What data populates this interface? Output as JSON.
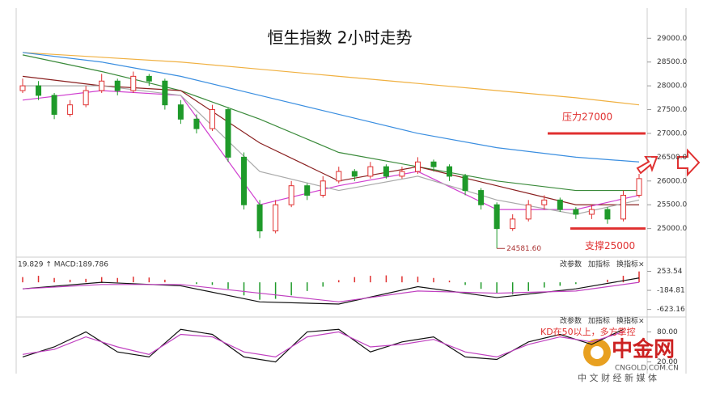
{
  "chart_data": [
    {
      "type": "candlestick",
      "title": "恒生指数 2小时走势",
      "open": [
        27900,
        28000,
        27800,
        27400,
        27600,
        27900,
        28100,
        27900,
        28200,
        28100,
        27600,
        27300,
        27100,
        27500,
        26500,
        25500,
        24950,
        25500,
        25900,
        25700,
        26000,
        26200,
        26100,
        26300,
        26100,
        26200,
        26400,
        26300,
        26100,
        25800,
        25500,
        25000,
        25200,
        25500,
        25600,
        25400,
        25300,
        25400,
        25200,
        25700
      ],
      "close": [
        28000,
        27800,
        27400,
        27600,
        27900,
        28100,
        27900,
        28200,
        28100,
        27600,
        27300,
        27100,
        27500,
        26500,
        25500,
        24950,
        25500,
        25900,
        25700,
        26000,
        26200,
        26100,
        26300,
        26100,
        26200,
        26400,
        26300,
        26100,
        25800,
        25500,
        25000,
        25200,
        25500,
        25600,
        25400,
        25300,
        25400,
        25200,
        25700,
        26050
      ],
      "high": [
        28150,
        28100,
        27850,
        27700,
        28000,
        28250,
        28150,
        28300,
        28250,
        28150,
        27700,
        27400,
        27600,
        27550,
        26600,
        25600,
        25600,
        26000,
        25950,
        26100,
        26300,
        26250,
        26400,
        26350,
        26300,
        26500,
        26450,
        26350,
        26150,
        25850,
        25550,
        25300,
        25600,
        25700,
        25650,
        25450,
        25500,
        25450,
        25800,
        26150
      ],
      "low": [
        27850,
        27700,
        27300,
        27350,
        27550,
        27850,
        27800,
        27850,
        28000,
        27500,
        27200,
        27000,
        27050,
        26400,
        25400,
        24800,
        24900,
        25450,
        25600,
        25650,
        25950,
        26000,
        26050,
        26050,
        26050,
        26150,
        26200,
        26000,
        25700,
        25400,
        24581.6,
        24950,
        25150,
        25400,
        25350,
        25200,
        25200,
        25100,
        25150,
        25650
      ],
      "up_color": "#e03030",
      "down_color": "#1f9a2a",
      "line_index": [
        0,
        5,
        10,
        15,
        20,
        25,
        30,
        35,
        39
      ],
      "lines": [
        {
          "color": "#f0b040",
          "values": [
            28700,
            28600,
            28500,
            28350,
            28200,
            28050,
            27900,
            27750,
            27600
          ]
        },
        {
          "color": "#3a8ee0",
          "values": [
            28700,
            28500,
            28200,
            27800,
            27400,
            27000,
            26700,
            26500,
            26400
          ]
        },
        {
          "color": "#3a8a3a",
          "values": [
            28650,
            28300,
            27900,
            27300,
            26600,
            26300,
            26000,
            25800,
            25800
          ]
        },
        {
          "color": "#8a2020",
          "values": [
            28200,
            28000,
            27900,
            26800,
            26000,
            26300,
            25900,
            25500,
            25500
          ]
        },
        {
          "color": "#d040d0",
          "values": [
            27700,
            27900,
            27800,
            25500,
            25900,
            26200,
            25400,
            25400,
            25700
          ]
        },
        {
          "color": "#aaaaaa",
          "values": [
            28000,
            28000,
            27800,
            26200,
            25800,
            26100,
            25600,
            25300,
            25600
          ]
        }
      ],
      "ylim": [
        24450,
        29600
      ],
      "yticks": [
        {
          "value": 25000,
          "label": "25000.0"
        },
        {
          "value": 25500,
          "label": "25500.0"
        },
        {
          "value": 26000,
          "label": "26000.0"
        },
        {
          "value": 26500,
          "label": "26500.0"
        },
        {
          "value": 27000,
          "label": "27000.0"
        },
        {
          "value": 27500,
          "label": "27500.0"
        },
        {
          "value": 28000,
          "label": "28000.0"
        },
        {
          "value": 28500,
          "label": "28500.0"
        },
        {
          "value": 29000,
          "label": "29000.0"
        }
      ],
      "levels": [
        {
          "text": "压力27000",
          "value": 27000
        },
        {
          "text": "支撑25000",
          "value": 25000
        }
      ],
      "low_label": {
        "value": 24581.6,
        "label": "24581.60"
      }
    },
    {
      "type": "macd",
      "label": "19.829 ↑ MACD:189.786",
      "values": [
        120,
        150,
        100,
        60,
        80,
        120,
        100,
        130,
        110,
        60,
        0,
        -40,
        -60,
        -150,
        -300,
        -400,
        -380,
        -300,
        -200,
        -100,
        50,
        120,
        150,
        160,
        140,
        130,
        100,
        40,
        -60,
        -150,
        -250,
        -280,
        -200,
        -120,
        -80,
        -40,
        0,
        60,
        150,
        250
      ],
      "line_index": [
        0,
        5,
        10,
        15,
        20,
        25,
        30,
        35,
        39
      ],
      "lines": [
        {
          "color": "#111111",
          "values": [
            -150,
            0,
            -80,
            -450,
            -500,
            -100,
            -350,
            -150,
            100
          ]
        },
        {
          "color": "#c040c0",
          "values": [
            -150,
            -50,
            -50,
            -250,
            -450,
            -200,
            -250,
            -200,
            0
          ]
        }
      ],
      "ylim": [
        -760,
        430
      ],
      "yticks": [
        253.54,
        -184.81,
        -623.16
      ]
    },
    {
      "type": "kd",
      "annotation": "KD在50以上，多方掌控",
      "line_index": [
        0,
        2,
        4,
        6,
        8,
        10,
        12,
        14,
        16,
        18,
        20,
        22,
        24,
        26,
        28,
        30,
        32,
        34,
        36,
        38
      ],
      "lines": [
        {
          "color": "#111111",
          "values": [
            30,
            50,
            80,
            40,
            30,
            85,
            75,
            30,
            20,
            80,
            85,
            40,
            60,
            70,
            30,
            25,
            60,
            75,
            55,
            85
          ]
        },
        {
          "color": "#c040c0",
          "values": [
            35,
            45,
            70,
            50,
            35,
            75,
            70,
            40,
            30,
            70,
            80,
            50,
            55,
            65,
            40,
            30,
            55,
            70,
            60,
            80
          ]
        }
      ],
      "ylim": [
        0,
        100
      ],
      "yticks": [
        {
          "value": 80,
          "label": "80.00"
        },
        {
          "value": 20,
          "label": "20.00"
        }
      ]
    }
  ],
  "buttons": [
    "改参数",
    "加指标",
    "换指标",
    "×"
  ],
  "watermark": {
    "name": "中金网",
    "site": "CNGOLD.COM.CN",
    "slogan": "中 文 财 经 新 媒 体"
  }
}
